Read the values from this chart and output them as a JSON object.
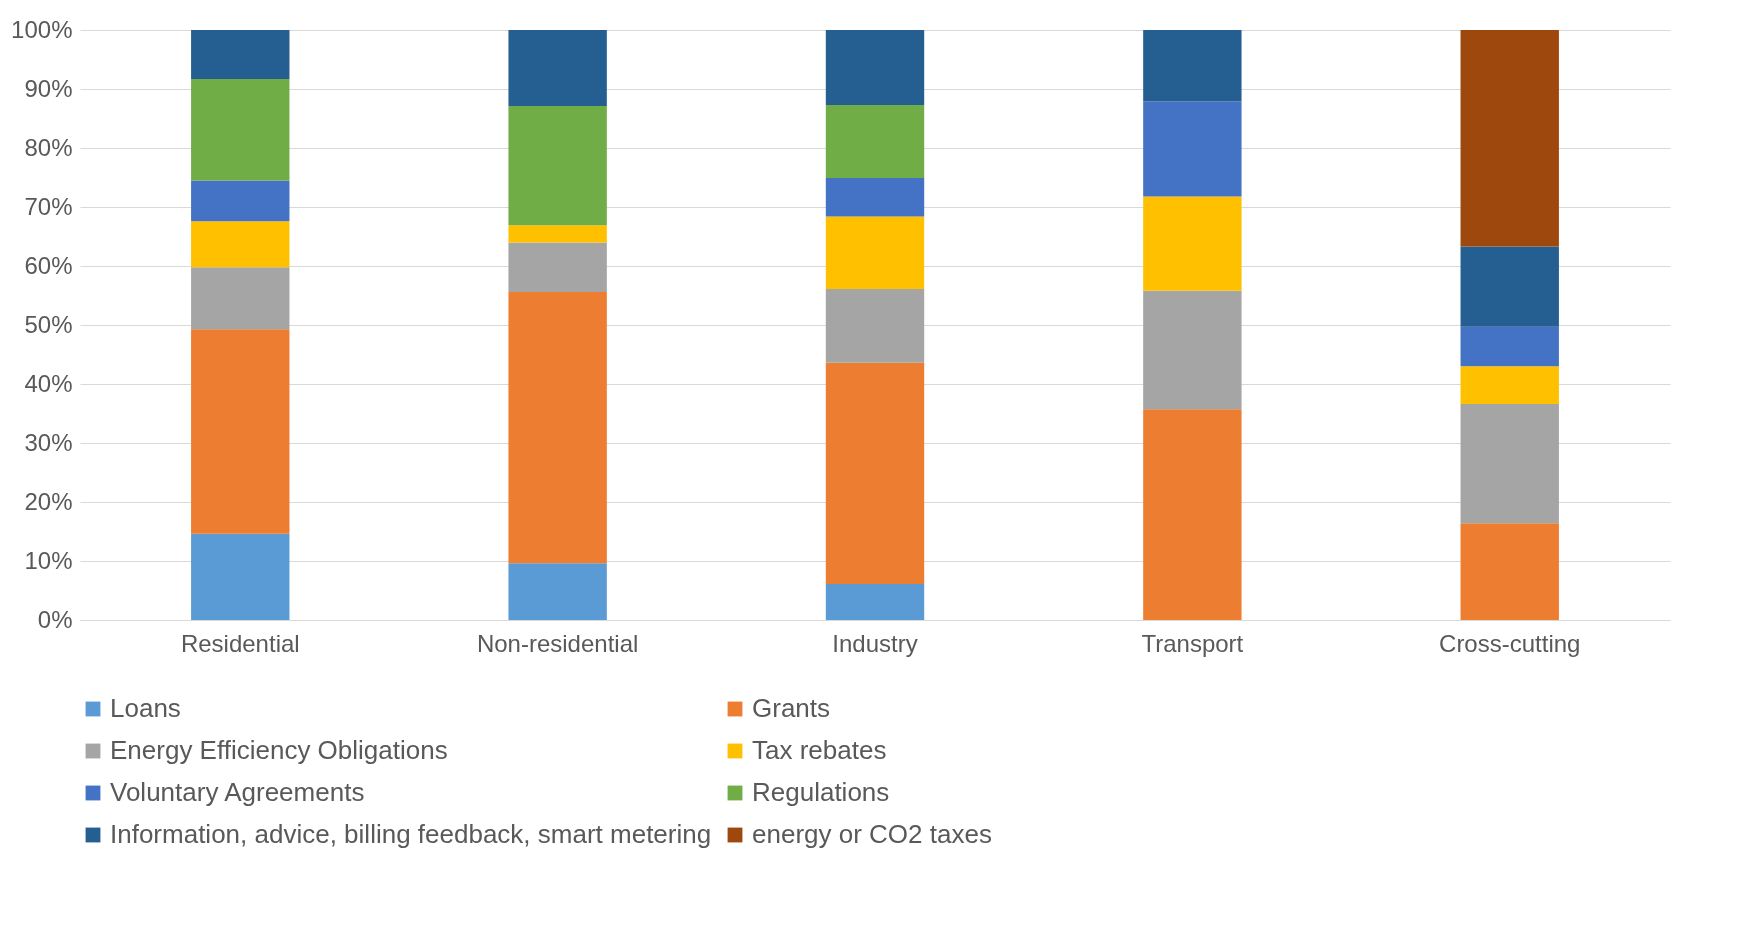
{
  "chart_data": {
    "type": "bar",
    "stacked": true,
    "categories": [
      "Residential",
      "Non-residential",
      "Industry",
      "Transport",
      "Cross-cutting"
    ],
    "ylim": [
      0,
      100
    ],
    "yticks": [
      {
        "value": 0,
        "label": "0%"
      },
      {
        "value": 10,
        "label": "10%"
      },
      {
        "value": 20,
        "label": "20%"
      },
      {
        "value": 30,
        "label": "30%"
      },
      {
        "value": 40,
        "label": "40%"
      },
      {
        "value": 50,
        "label": "50%"
      },
      {
        "value": 60,
        "label": "60%"
      },
      {
        "value": 70,
        "label": "70%"
      },
      {
        "value": 80,
        "label": "80%"
      },
      {
        "value": 90,
        "label": "90%"
      },
      {
        "value": 100,
        "label": "100%"
      }
    ],
    "grid": "y",
    "legend": "bottom",
    "series": [
      {
        "name": "Loans",
        "color": "#5b9bd5",
        "values": [
          14.6,
          9.6,
          6.1,
          null,
          null
        ]
      },
      {
        "name": "Grants",
        "color": "#ed7d31",
        "values": [
          34.7,
          46.0,
          37.5,
          35.7,
          16.4
        ]
      },
      {
        "name": "Energy Efficiency Obligations",
        "color": "#a5a5a5",
        "values": [
          10.5,
          8.4,
          12.5,
          20.1,
          20.2
        ]
      },
      {
        "name": "Tax rebates",
        "color": "#ffc000",
        "values": [
          7.8,
          2.9,
          12.3,
          16.0,
          6.4
        ]
      },
      {
        "name": "Voluntary Agreements",
        "color": "#4472c4",
        "values": [
          6.9,
          null,
          6.5,
          16.1,
          6.7
        ]
      },
      {
        "name": "Regulations",
        "color": "#70ad47",
        "values": [
          17.2,
          20.2,
          12.4,
          null,
          null
        ]
      },
      {
        "name": "Information, advice, billing feedback, smart metering",
        "color": "#255e91",
        "values": [
          8.3,
          12.9,
          12.7,
          12.1,
          13.6
        ]
      },
      {
        "name": "energy or CO2 taxes",
        "color": "#9e480e",
        "values": [
          null,
          null,
          null,
          null,
          36.7
        ]
      }
    ]
  }
}
